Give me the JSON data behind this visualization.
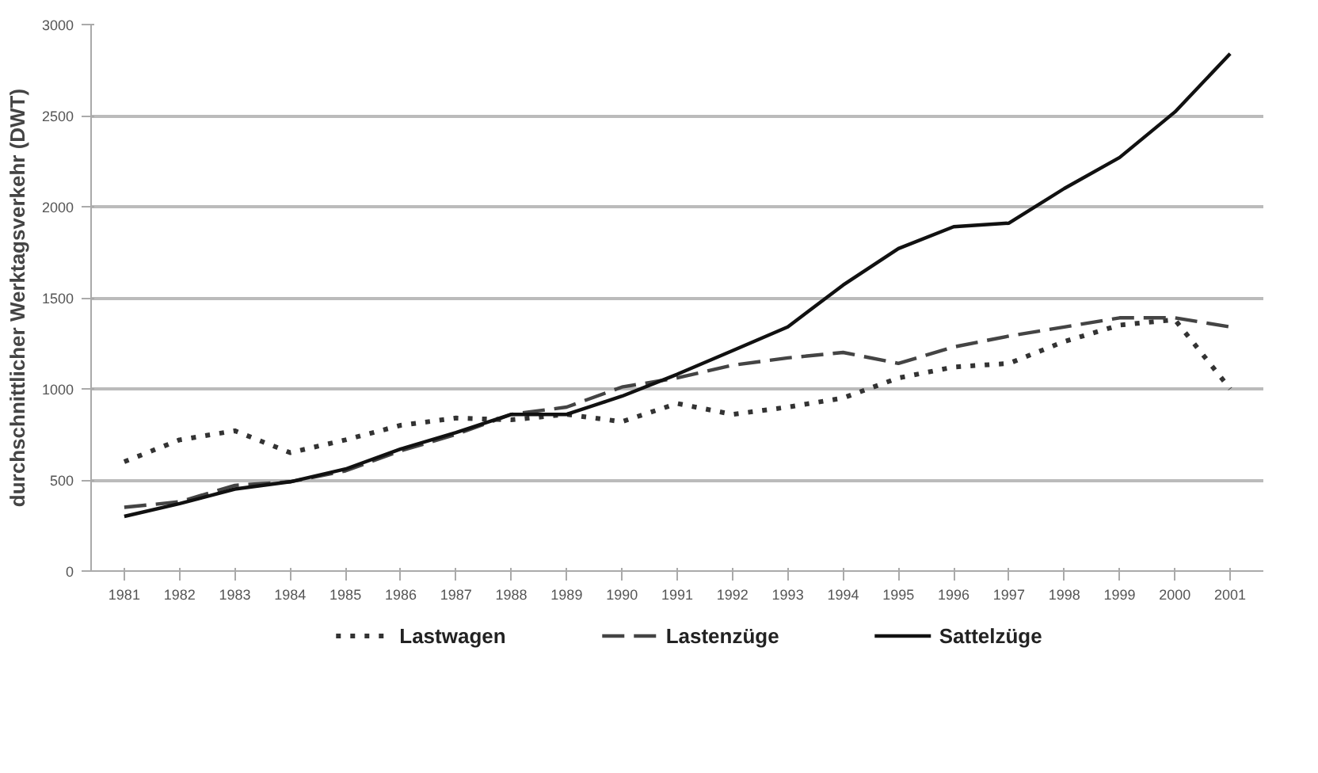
{
  "chart_data": {
    "type": "line",
    "ylabel": "durchschnittlicher Werktagsverkehr (DWT)",
    "categories": [
      "1981",
      "1982",
      "1983",
      "1984",
      "1985",
      "1986",
      "1987",
      "1988",
      "1989",
      "1990",
      "1991",
      "1992",
      "1993",
      "1994",
      "1995",
      "1996",
      "1997",
      "1998",
      "1999",
      "2000",
      "2001"
    ],
    "ylim": [
      0,
      3000
    ],
    "yticks": [
      0,
      500,
      1000,
      1500,
      2000,
      2500,
      3000
    ],
    "grid": "y",
    "legend": "bottom",
    "series": [
      {
        "name": "Lastwagen",
        "color": "#333333",
        "line_style": "dotted",
        "values": [
          600,
          720,
          770,
          650,
          720,
          800,
          840,
          830,
          860,
          820,
          920,
          860,
          900,
          950,
          1060,
          1120,
          1140,
          1260,
          1350,
          1380,
          1000
        ]
      },
      {
        "name": "Lastenzüge",
        "color": "#444444",
        "line_style": "dashed",
        "values": [
          350,
          380,
          470,
          490,
          550,
          660,
          750,
          860,
          900,
          1010,
          1060,
          1130,
          1170,
          1200,
          1140,
          1230,
          1290,
          1340,
          1390,
          1390,
          1340
        ]
      },
      {
        "name": "Sattelzüge",
        "color": "#111111",
        "line_style": "solid",
        "values": [
          300,
          370,
          450,
          490,
          560,
          670,
          760,
          860,
          860,
          960,
          1080,
          1210,
          1340,
          1570,
          1770,
          1890,
          1910,
          2100,
          2270,
          2520,
          2840
        ]
      }
    ]
  }
}
